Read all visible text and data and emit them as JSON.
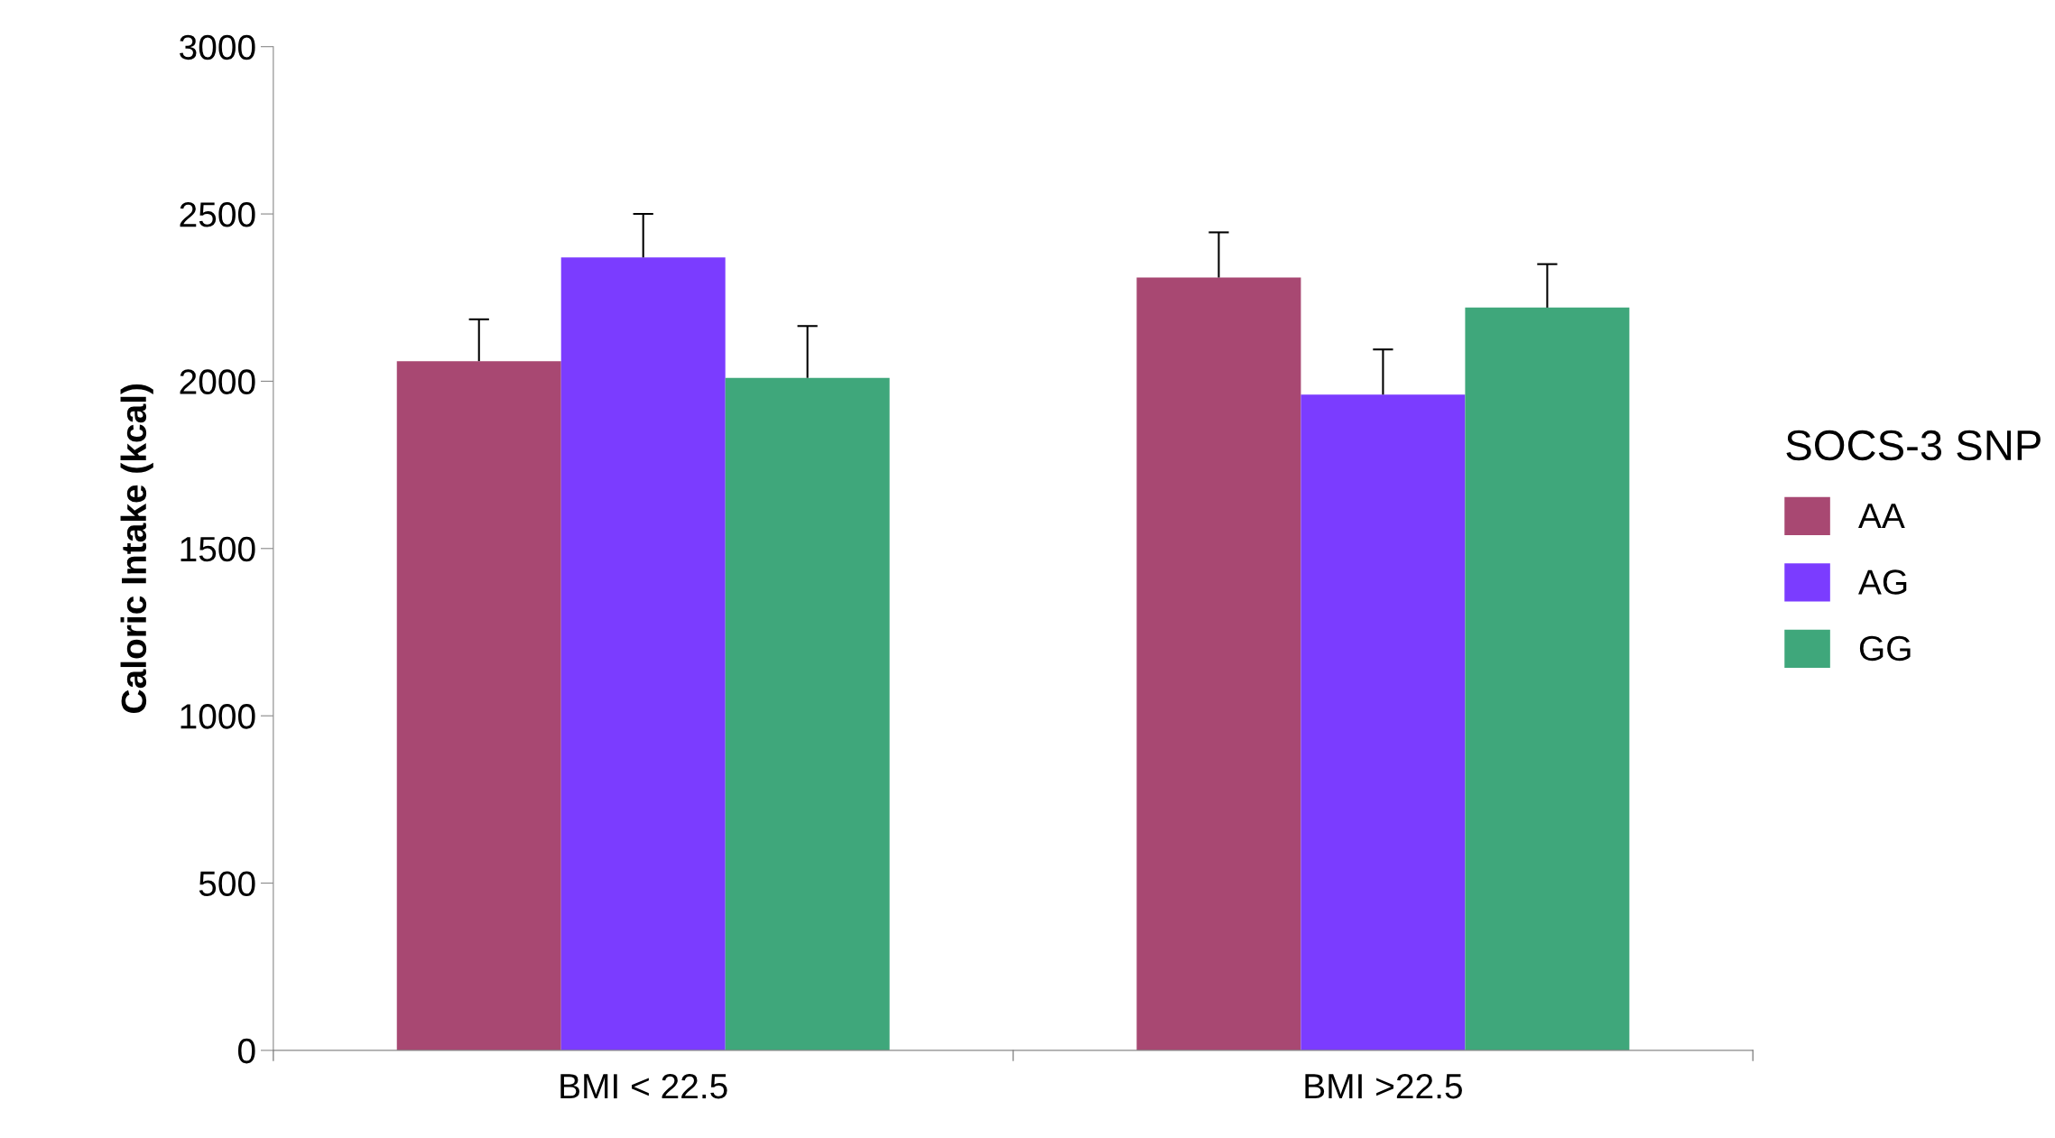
{
  "chart_data": {
    "type": "bar",
    "ylabel": "Caloric Intake (kcal)",
    "legend_title": "SOCS-3 SNP",
    "categories": [
      "BMI < 22.5",
      "BMI >22.5"
    ],
    "series": [
      {
        "name": "AA",
        "color": "#a84872",
        "values": [
          2060,
          2310
        ],
        "errors": [
          [
            2060,
            2185
          ],
          [
            2310,
            2445
          ]
        ]
      },
      {
        "name": "AG",
        "color": "#7b3cff",
        "values": [
          2370,
          1960
        ],
        "errors": [
          [
            2370,
            2500
          ],
          [
            1960,
            2095
          ]
        ]
      },
      {
        "name": "GG",
        "color": "#3fa77b",
        "values": [
          2010,
          2220
        ],
        "errors": [
          [
            2010,
            2165
          ],
          [
            2220,
            2350
          ]
        ]
      }
    ],
    "ylim": [
      0,
      3000
    ],
    "yticks": [
      0,
      500,
      1000,
      1500,
      2000,
      2500,
      3000
    ],
    "grid": false,
    "legend": "right"
  }
}
